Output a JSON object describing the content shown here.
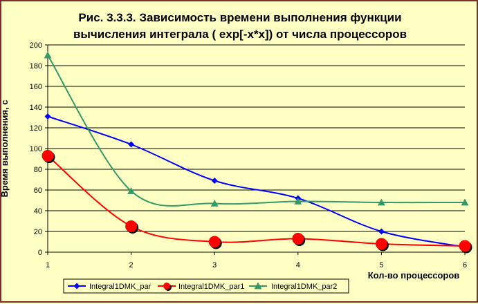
{
  "chart_data": {
    "type": "line",
    "title_line1": "Рис. 3.3.3. Зависимость времени выполнения функции",
    "title_line2": "вычисления интеграла ( exp[-x*x]) от числа процессоров",
    "xlabel": "Кол-во процессоров",
    "ylabel": "Время выполнения, с",
    "x": [
      1,
      2,
      3,
      4,
      5,
      6
    ],
    "xlim": [
      1,
      6
    ],
    "ylim": [
      0,
      200
    ],
    "yticks": [
      0,
      20,
      40,
      60,
      80,
      100,
      120,
      140,
      160,
      180,
      200
    ],
    "grid": true,
    "legend_position": "bottom",
    "series": [
      {
        "name": "Integral1DMK_par",
        "values": [
          131,
          104,
          69,
          52,
          20,
          5
        ],
        "color": "#0000ff",
        "marker": "diamond"
      },
      {
        "name": "Integral1DMK_par1",
        "values": [
          93,
          25,
          10,
          13,
          8,
          6
        ],
        "color": "#ff0000",
        "marker": "circle"
      },
      {
        "name": "Integral1DMK_par2",
        "values": [
          190,
          59,
          47,
          49,
          48,
          48
        ],
        "color": "#339966",
        "marker": "triangle"
      }
    ]
  }
}
